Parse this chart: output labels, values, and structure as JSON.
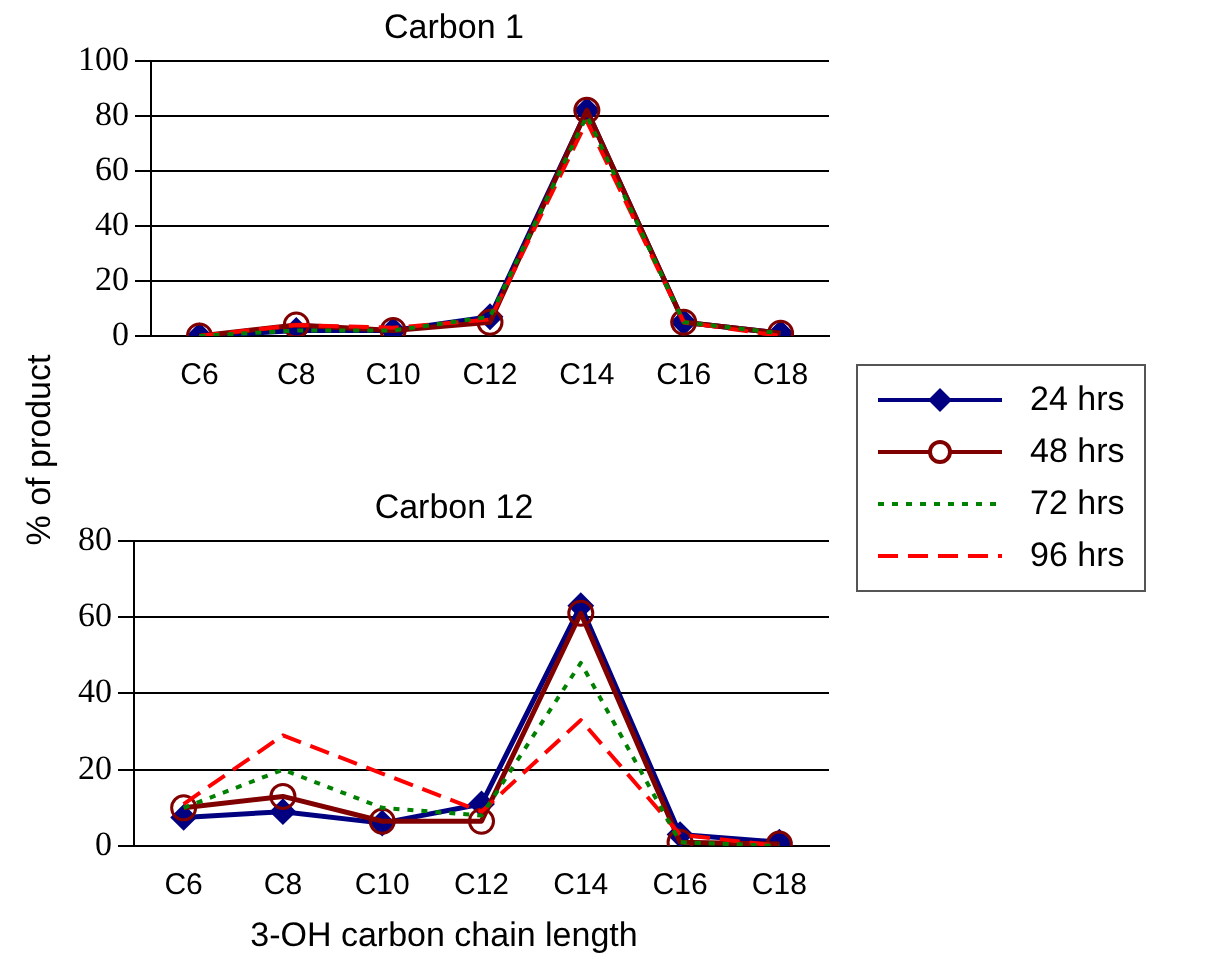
{
  "chart_data": [
    {
      "type": "line",
      "title": "Carbon 1",
      "ylabel": "% of product",
      "categories": [
        "C6",
        "C8",
        "C10",
        "C12",
        "C14",
        "C16",
        "C18"
      ],
      "ylim": [
        0,
        100
      ],
      "yticks": [
        0,
        20,
        40,
        60,
        80,
        100
      ],
      "grid": "y",
      "legend": "right",
      "series": [
        {
          "name": "24 hrs",
          "color": "#000080",
          "marker": "diamond",
          "line_style": "solid",
          "values": [
            0,
            2,
            2,
            7,
            82,
            5,
            1
          ]
        },
        {
          "name": "48 hrs",
          "color": "#800000",
          "marker": "circle",
          "line_style": "solid",
          "values": [
            0,
            4,
            2,
            5,
            82,
            5,
            1
          ]
        },
        {
          "name": "72 hrs",
          "color": "#008000",
          "marker": "none",
          "line_style": "dotted",
          "values": [
            0,
            2,
            2,
            7,
            80,
            5,
            1
          ]
        },
        {
          "name": "96 hrs",
          "color": "#ff0000",
          "marker": "none",
          "line_style": "dashed",
          "values": [
            0,
            4,
            3,
            6,
            78,
            5,
            0
          ]
        }
      ]
    },
    {
      "type": "line",
      "title": "Carbon 12",
      "xlabel": "3-OH carbon chain length",
      "categories": [
        "C6",
        "C8",
        "C10",
        "C12",
        "C14",
        "C16",
        "C18"
      ],
      "ylim": [
        0,
        80
      ],
      "yticks": [
        0,
        20,
        40,
        60,
        80
      ],
      "grid": "y",
      "series": [
        {
          "color": "#000080",
          "marker": "diamond",
          "line_style": "solid",
          "values": [
            7.5,
            9,
            6,
            11,
            63,
            3,
            1
          ]
        },
        {
          "color": "#800000",
          "marker": "circle",
          "line_style": "solid",
          "values": [
            10,
            13,
            6.5,
            6.5,
            61,
            1,
            0.5
          ]
        },
        {
          "color": "#008000",
          "marker": "none",
          "line_style": "dotted",
          "values": [
            10,
            20,
            10,
            8,
            48,
            1,
            0
          ]
        },
        {
          "color": "#ff0000",
          "marker": "none",
          "line_style": "dashed",
          "values": [
            11,
            29,
            19,
            9,
            33,
            3,
            0
          ]
        }
      ]
    }
  ]
}
